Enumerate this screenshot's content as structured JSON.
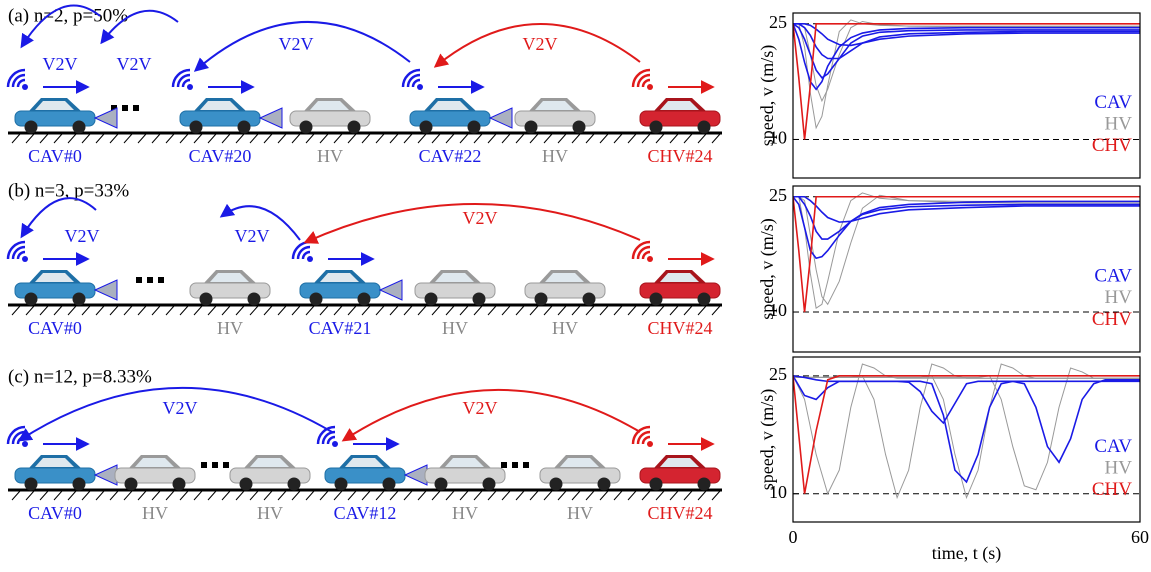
{
  "colors": {
    "CAV": "#1a1ae6",
    "HV": "#888888",
    "CHV": "#e01a1a"
  },
  "diagrams": [
    {
      "title": "(a) n=2, p=50%",
      "vehicles": [
        {
          "label": "CAV#0",
          "kind": "CAV"
        },
        {
          "label": "CAV#20",
          "kind": "CAV"
        },
        {
          "label": "HV",
          "kind": "HV"
        },
        {
          "label": "CAV#22",
          "kind": "CAV"
        },
        {
          "label": "HV",
          "kind": "HV"
        },
        {
          "label": "CHV#24",
          "kind": "CHV"
        }
      ],
      "links": [
        {
          "label": "V2V",
          "kind": "CAV"
        },
        {
          "label": "V2V",
          "kind": "CAV"
        },
        {
          "label": "V2V",
          "kind": "CAV"
        },
        {
          "label": "V2V",
          "kind": "CHV"
        }
      ]
    },
    {
      "title": "(b) n=3, p=33%",
      "vehicles": [
        {
          "label": "CAV#0",
          "kind": "CAV"
        },
        {
          "label": "HV",
          "kind": "HV"
        },
        {
          "label": "CAV#21",
          "kind": "CAV"
        },
        {
          "label": "HV",
          "kind": "HV"
        },
        {
          "label": "HV",
          "kind": "HV"
        },
        {
          "label": "CHV#24",
          "kind": "CHV"
        }
      ],
      "links": [
        {
          "label": "V2V",
          "kind": "CAV"
        },
        {
          "label": "V2V",
          "kind": "CAV"
        },
        {
          "label": "V2V",
          "kind": "CHV"
        }
      ]
    },
    {
      "title": "(c) n=12, p=8.33%",
      "vehicles": [
        {
          "label": "CAV#0",
          "kind": "CAV"
        },
        {
          "label": "HV",
          "kind": "HV"
        },
        {
          "label": "HV",
          "kind": "HV"
        },
        {
          "label": "CAV#12",
          "kind": "CAV"
        },
        {
          "label": "HV",
          "kind": "HV"
        },
        {
          "label": "HV",
          "kind": "HV"
        },
        {
          "label": "CHV#24",
          "kind": "CHV"
        }
      ],
      "links": [
        {
          "label": "V2V",
          "kind": "CAV"
        },
        {
          "label": "V2V",
          "kind": "CHV"
        }
      ]
    }
  ],
  "chart_data": [
    {
      "type": "line",
      "ylabel": "speed, v (m/s)",
      "xlim": [
        0,
        60
      ],
      "ylim": [
        5,
        26.4
      ],
      "yticks": [
        10,
        25
      ],
      "tick_lines": "dashed",
      "x": [
        0,
        1,
        2,
        3,
        4,
        5,
        6,
        8,
        10,
        12,
        15,
        20,
        30,
        40,
        60
      ],
      "series": [
        {
          "name": "CAV",
          "color": "#1a1ae6",
          "lines": [
            [
              25,
              23,
              20,
              17.5,
              16.5,
              17.5,
              19.5,
              22,
              23.2,
              23.8,
              24.2,
              24.4,
              24.5,
              24.5,
              24.5
            ],
            [
              25,
              24.5,
              23,
              21,
              19,
              18,
              18.5,
              20.5,
              22.5,
              23.4,
              23.9,
              24.1,
              24.2,
              24.2,
              24.2
            ],
            [
              25,
              25,
              24.5,
              23.5,
              22,
              21,
              20.5,
              20.5,
              21.5,
              22.5,
              23.3,
              23.7,
              23.9,
              24,
              24
            ],
            [
              25,
              25,
              25,
              24.8,
              24.3,
              23.7,
              23,
              22.3,
              22.2,
              22.5,
              23,
              23.4,
              23.7,
              23.8,
              23.8
            ]
          ]
        },
        {
          "name": "HV",
          "color": "#999999",
          "lines": [
            [
              25,
              25,
              22,
              16,
              11.5,
              13,
              17,
              24,
              25.5,
              25,
              24.8,
              24.7,
              24.7,
              24.7,
              24.7
            ],
            [
              25,
              25,
              24.5,
              21,
              17,
              15,
              16.5,
              21,
              24.5,
              25.3,
              24.9,
              24.7,
              24.6,
              24.6,
              24.6
            ]
          ]
        },
        {
          "name": "CHV",
          "color": "#e01a1a",
          "lines": [
            [
              25,
              18,
              10,
              17,
              25,
              25,
              25,
              25,
              25,
              25,
              25,
              25,
              25,
              25,
              25
            ]
          ]
        }
      ]
    },
    {
      "type": "line",
      "ylabel": "speed, v (m/s)",
      "xlim": [
        0,
        60
      ],
      "ylim": [
        4.8,
        26.4
      ],
      "yticks": [
        10,
        25
      ],
      "tick_lines": "dashed",
      "x": [
        0,
        1,
        2,
        3,
        4,
        5,
        6,
        8,
        10,
        12,
        15,
        20,
        30,
        40,
        60
      ],
      "series": [
        {
          "name": "CAV",
          "color": "#1a1ae6",
          "lines": [
            [
              25,
              24,
              21,
              18,
              17,
              17.2,
              18,
              20,
              21.8,
              22.8,
              23.6,
              24,
              24.3,
              24.4,
              24.4
            ],
            [
              25,
              25,
              24,
              22.5,
              20.5,
              19.5,
              19.5,
              20.5,
              21.8,
              22.7,
              23.3,
              23.7,
              23.9,
              24,
              24
            ],
            [
              25,
              25,
              25,
              24.5,
              23.8,
              23,
              22.3,
              21.7,
              21.8,
              22.2,
              22.8,
              23.3,
              23.6,
              23.8,
              23.8
            ]
          ]
        },
        {
          "name": "HV",
          "color": "#999999",
          "lines": [
            [
              25,
              25,
              21,
              15,
              10.5,
              11,
              14,
              20.5,
              24.5,
              25.5,
              24.8,
              24.5,
              24.4,
              24.4,
              24.4
            ],
            [
              25,
              25,
              24.5,
              20,
              15.5,
              12,
              11,
              14,
              19,
              23.5,
              25.2,
              24.5,
              24.2,
              24.2,
              24.2
            ]
          ]
        },
        {
          "name": "CHV",
          "color": "#e01a1a",
          "lines": [
            [
              25,
              18,
              10,
              17,
              25,
              25,
              25,
              25,
              25,
              25,
              25,
              25,
              25,
              25,
              25
            ]
          ]
        }
      ]
    },
    {
      "type": "line",
      "ylabel": "speed, v (m/s)",
      "xlabel": "time, t (s)",
      "xlim": [
        0,
        60
      ],
      "xticks": [
        0,
        60
      ],
      "ylim": [
        6.4,
        27.4
      ],
      "yticks": [
        10,
        25
      ],
      "tick_lines": "dashed",
      "x": [
        0,
        2,
        4,
        6,
        8,
        10,
        12,
        14,
        16,
        18,
        20,
        22,
        24,
        26,
        28,
        30,
        32,
        34,
        36,
        38,
        40,
        42,
        44,
        46,
        48,
        50,
        52,
        54,
        56,
        58,
        60
      ],
      "series": [
        {
          "name": "CAV",
          "color": "#1a1ae6",
          "lines": [
            [
              25,
              22.5,
              22,
              23.5,
              24.3,
              24.3,
              24.3,
              24.3,
              24.3,
              24.3,
              24.2,
              23,
              20.5,
              19,
              21.5,
              24,
              24.3,
              24.3,
              24.3,
              24.3,
              24.3,
              24.3,
              24.3,
              24.3,
              24.3,
              24.3,
              24.3,
              24.3,
              24.3,
              24.3,
              24.3
            ],
            [
              25,
              24.8,
              24.5,
              24.3,
              24.3,
              24.3,
              24.3,
              24.3,
              24.3,
              24.3,
              24.3,
              24.3,
              24,
              20,
              13,
              11.5,
              15,
              21,
              24,
              24.3,
              24,
              21,
              16,
              14,
              17,
              22,
              24,
              24.5,
              24.5,
              24.5,
              24.5
            ]
          ]
        },
        {
          "name": "HV",
          "color": "#999999",
          "lines": [
            [
              25,
              22,
              15,
              10,
              13,
              21,
              26.5,
              26,
              25,
              24.7,
              24.7,
              24.7,
              24.7,
              24.7,
              24.7,
              24.7,
              24.7,
              24.7,
              24.7,
              24.7,
              24.7,
              24.7,
              24.7,
              24.7,
              24.7,
              24.7,
              24.7,
              24.7,
              24.7,
              24.7,
              24.7
            ],
            [
              24.8,
              24.8,
              24.8,
              24.8,
              24.8,
              24.8,
              25,
              22,
              15,
              9.5,
              13,
              21,
              26.5,
              26,
              25,
              24.7,
              24.7,
              24.7,
              24.7,
              24.7,
              24.7,
              24.7,
              24.7,
              24.7,
              24.7,
              24.7,
              24.7,
              24.7,
              24.7,
              24.7,
              24.7
            ],
            [
              24.8,
              24.8,
              24.8,
              24.8,
              24.8,
              24.8,
              24.8,
              24.8,
              24.8,
              24.8,
              24.8,
              24.8,
              25,
              22,
              15,
              9.5,
              13,
              21,
              26.5,
              26,
              25,
              24.7,
              24.7,
              24.7,
              24.7,
              24.7,
              24.7,
              24.7,
              24.7,
              24.7,
              24.7
            ],
            [
              24.8,
              24.8,
              24.8,
              24.8,
              24.8,
              24.8,
              24.8,
              24.8,
              24.8,
              24.8,
              24.8,
              24.8,
              24.8,
              24.8,
              24.8,
              24.8,
              24.8,
              25,
              22,
              16,
              11,
              10.5,
              14,
              21,
              26,
              25.5,
              24.7,
              24.7,
              24.7,
              24.7,
              24.7
            ]
          ]
        },
        {
          "name": "CHV",
          "color": "#e01a1a",
          "lines": [
            [
              25,
              10,
              18,
              24.5,
              25,
              25,
              25,
              25,
              25,
              25,
              25,
              25,
              25,
              25,
              25,
              25,
              25,
              25,
              25,
              25,
              25,
              25,
              25,
              25,
              25,
              25,
              25,
              25,
              25,
              25,
              25
            ]
          ]
        }
      ]
    }
  ]
}
